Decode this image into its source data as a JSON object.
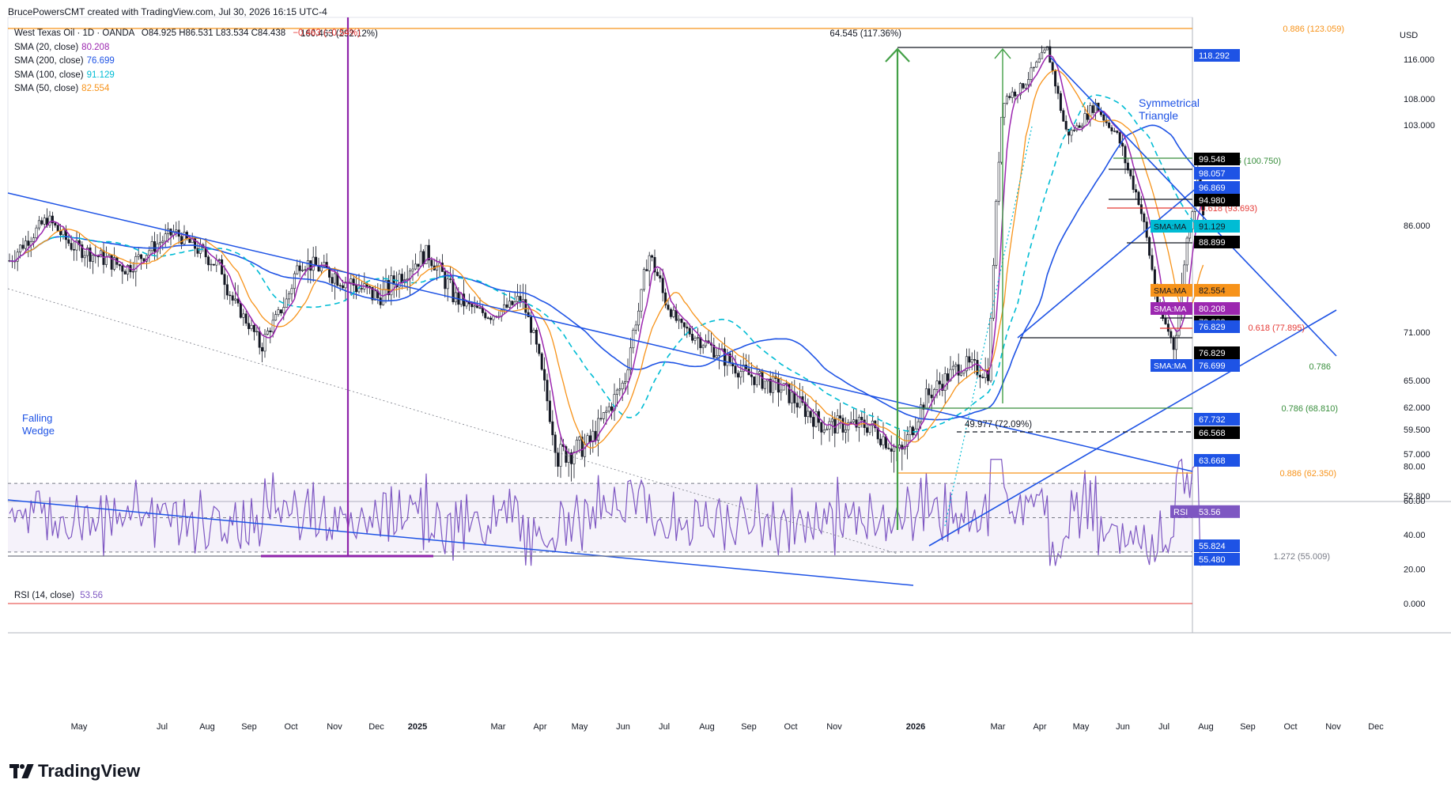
{
  "header": {
    "created_by": "BrucePowersCMT created with TradingView.com, Jul 30, 2026 16:15 UTC-4"
  },
  "legend": {
    "symbol": "West Texas Oil · 1D · OANDA",
    "ohlc": "O84.925 H86.531 L83.534 C84.438",
    "change": "−0.463 (−0.54%)",
    "indicators": [
      {
        "label": "SMA (20, close)",
        "value": "80.208",
        "color": "#9c27b0"
      },
      {
        "label": "SMA (200, close)",
        "value": "76.699",
        "color": "#1e53e5"
      },
      {
        "label": "SMA (100, close)",
        "value": "91.129",
        "color": "#00bcd4"
      },
      {
        "label": "SMA (50, close)",
        "value": "82.554",
        "color": "#f7931a"
      }
    ]
  },
  "rsi_legend": {
    "label": "RSI (14, close)",
    "value": "53.56"
  },
  "brand": "TradingView",
  "currency": "USD",
  "chart_data": {
    "type": "candlestick",
    "price_axis_ticks": [
      116.0,
      108.0,
      103.0,
      86.0,
      71.0,
      65.0,
      62.0,
      59.5,
      57.0,
      52.8
    ],
    "price_axis_tick_labels": [
      "116.000",
      "108.000",
      "103.000",
      "86.000",
      "71.000",
      "65.000",
      "62.000",
      "59.500",
      "57.000",
      "52.800"
    ],
    "time_axis": [
      "May",
      "Jul",
      "Aug",
      "Sep",
      "Oct",
      "Nov",
      "Dec",
      "2025",
      "Mar",
      "Apr",
      "May",
      "Jun",
      "Jul",
      "Aug",
      "Sep",
      "Oct",
      "Nov",
      "2026",
      "Mar",
      "Apr",
      "May",
      "Jun",
      "Jul",
      "Aug",
      "Sep",
      "Oct",
      "Nov",
      "Dec"
    ],
    "price_labels": [
      {
        "value": "118.292",
        "bg": "#1e53e5",
        "fg": "#ffffff"
      },
      {
        "value": "99.548",
        "bg": "#000000",
        "fg": "#ffffff"
      },
      {
        "value": "98.057",
        "bg": "#1e53e5",
        "fg": "#ffffff"
      },
      {
        "value": "96.869",
        "bg": "#1e53e5",
        "fg": "#ffffff"
      },
      {
        "value": "94.980",
        "bg": "#000000",
        "fg": "#ffffff"
      },
      {
        "value": "91.129",
        "bg": "#00bcd4",
        "fg": "#131722",
        "tag": "SMA:MA"
      },
      {
        "value": "88.899",
        "bg": "#000000",
        "fg": "#ffffff"
      },
      {
        "value": "82.554",
        "bg": "#f7931a",
        "fg": "#131722",
        "tag": "SMA:MA"
      },
      {
        "value": "80.208",
        "bg": "#9c27b0",
        "fg": "#ffffff",
        "tag": "SMA:MA"
      },
      {
        "value": "79.233",
        "bg": "#000000",
        "fg": "#ffffff"
      },
      {
        "value": "76.829",
        "bg": "#1e53e5",
        "fg": "#ffffff"
      },
      {
        "value": "76.829",
        "bg": "#000000",
        "fg": "#ffffff"
      },
      {
        "value": "76.699",
        "bg": "#1e53e5",
        "fg": "#ffffff",
        "tag": "SMA:MA"
      },
      {
        "value": "67.732",
        "bg": "#1e53e5",
        "fg": "#ffffff"
      },
      {
        "value": "66.568",
        "bg": "#000000",
        "fg": "#ffffff"
      },
      {
        "value": "63.668",
        "bg": "#1e53e5",
        "fg": "#ffffff"
      },
      {
        "value": "55.824",
        "bg": "#1e53e5",
        "fg": "#ffffff"
      },
      {
        "value": "55.480",
        "bg": "#1e53e5",
        "fg": "#ffffff"
      }
    ],
    "fib_levels": [
      {
        "label": "0.886 (123.059)",
        "price": 123.059,
        "color": "#f7931a"
      },
      {
        "label": "0.786 (100.750)",
        "price": 100.75,
        "color": "#388e3c"
      },
      {
        "label": "0.618 (93.693)",
        "price": 93.693,
        "color": "#e53935"
      },
      {
        "label": "0.618 (77.895)",
        "price": 77.895,
        "color": "#e53935"
      },
      {
        "label": "0.786",
        "price": 75.3,
        "color": "#388e3c"
      },
      {
        "label": "0.786 (68.810)",
        "price": 68.81,
        "color": "#388e3c"
      },
      {
        "label": "0.886 (62.350)",
        "price": 62.35,
        "color": "#f7931a"
      },
      {
        "label": "1.272 (55.009)",
        "price": 55.009,
        "color": "#787b86"
      }
    ],
    "annotations": [
      "Falling\nWedge",
      "Symmetrical\nTriangle",
      "64.545 (117.36%)",
      "49.977 (72.09%)",
      "160.463 (292.12%)"
    ],
    "rsi": {
      "levels": [
        80.0,
        60.0,
        40.0,
        20.0,
        0.0
      ],
      "level_labels": [
        "80.00",
        "60.00",
        "40.00",
        "20.00",
        "0.000"
      ],
      "overbought": 70,
      "oversold": 30,
      "last": 53.56
    },
    "rsi_tag": "RSI"
  },
  "colors": {
    "candle": "#131722",
    "sma20": "#9c27b0",
    "sma50": "#f7931a",
    "sma100": "#00bcd4",
    "sma200": "#1e53e5",
    "trend": "#1e53e5",
    "rsi": "#7e57c2",
    "proj": "#43a047",
    "vline": "#8e24aa"
  }
}
